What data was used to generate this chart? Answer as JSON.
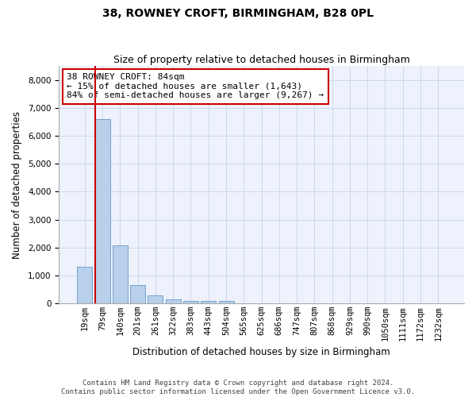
{
  "title_line1": "38, ROWNEY CROFT, BIRMINGHAM, B28 0PL",
  "title_line2": "Size of property relative to detached houses in Birmingham",
  "xlabel": "Distribution of detached houses by size in Birmingham",
  "ylabel": "Number of detached properties",
  "categories": [
    "19sqm",
    "79sqm",
    "140sqm",
    "201sqm",
    "261sqm",
    "322sqm",
    "383sqm",
    "443sqm",
    "504sqm",
    "565sqm",
    "625sqm",
    "686sqm",
    "747sqm",
    "807sqm",
    "868sqm",
    "929sqm",
    "990sqm",
    "1050sqm",
    "1111sqm",
    "1172sqm",
    "1232sqm"
  ],
  "values": [
    1300,
    6600,
    2080,
    660,
    290,
    145,
    100,
    80,
    100,
    0,
    0,
    0,
    0,
    0,
    0,
    0,
    0,
    0,
    0,
    0,
    0
  ],
  "bar_color": "#b8d0ea",
  "bar_edge_color": "#6699cc",
  "vline_color": "#cc0000",
  "annotation_text": "38 ROWNEY CROFT: 84sqm\n← 15% of detached houses are smaller (1,643)\n84% of semi-detached houses are larger (9,267) →",
  "annotation_box_color": "white",
  "annotation_box_edge_color": "#cc0000",
  "ylim": [
    0,
    8500
  ],
  "yticks": [
    0,
    1000,
    2000,
    3000,
    4000,
    5000,
    6000,
    7000,
    8000
  ],
  "footer_line1": "Contains HM Land Registry data © Crown copyright and database right 2024.",
  "footer_line2": "Contains public sector information licensed under the Open Government Licence v3.0.",
  "background_color": "#eef2fc",
  "grid_color": "#c8d4ea",
  "title_fontsize": 10,
  "subtitle_fontsize": 9,
  "axis_label_fontsize": 8.5,
  "tick_fontsize": 7.5,
  "annotation_fontsize": 8,
  "footer_fontsize": 6.5
}
